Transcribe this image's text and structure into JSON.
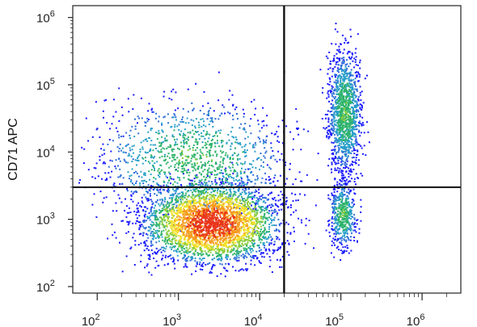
{
  "chart_data": {
    "type": "scatter",
    "subtype": "flow-cytometry density dot plot",
    "title": "",
    "xlabel": "",
    "ylabel": "CD71 APC",
    "x_scale": "log",
    "y_scale": "log",
    "xlim": [
      50,
      3000000
    ],
    "ylim": [
      80,
      1500000
    ],
    "x_ticks": [
      {
        "value": 100,
        "base": "10",
        "exp": "2"
      },
      {
        "value": 1000,
        "base": "10",
        "exp": "3"
      },
      {
        "value": 10000,
        "base": "10",
        "exp": "4"
      },
      {
        "value": 100000,
        "base": "10",
        "exp": "5"
      },
      {
        "value": 1000000,
        "base": "10",
        "exp": "6"
      }
    ],
    "y_ticks": [
      {
        "value": 100,
        "base": "10",
        "exp": "2"
      },
      {
        "value": 1000,
        "base": "10",
        "exp": "3"
      },
      {
        "value": 10000,
        "base": "10",
        "exp": "4"
      },
      {
        "value": 100000,
        "base": "10",
        "exp": "5"
      },
      {
        "value": 1000000,
        "base": "10",
        "exp": "6"
      }
    ],
    "quadrant_gate": {
      "x": 20000,
      "y": 3000
    },
    "populations": [
      {
        "name": "",
        "center": [
          2500,
          900
        ],
        "spread_log": [
          0.42,
          0.3
        ],
        "density": "very high"
      },
      {
        "name": "",
        "center": [
          1500,
          8000
        ],
        "spread_log": [
          0.6,
          0.45
        ],
        "density": "medium"
      },
      {
        "name": "",
        "center": [
          110000,
          40000
        ],
        "spread_log": [
          0.1,
          0.45
        ],
        "density": "medium"
      },
      {
        "name": "",
        "center": [
          105000,
          1200
        ],
        "spread_log": [
          0.08,
          0.25
        ],
        "density": "low"
      }
    ],
    "density_colors": [
      "#1a1aff",
      "#2f6fd8",
      "#28a0c8",
      "#2fb36b",
      "#8ccd3a",
      "#f2e02a",
      "#f59a1f",
      "#e8361b"
    ],
    "grid": false,
    "legend": "none"
  }
}
